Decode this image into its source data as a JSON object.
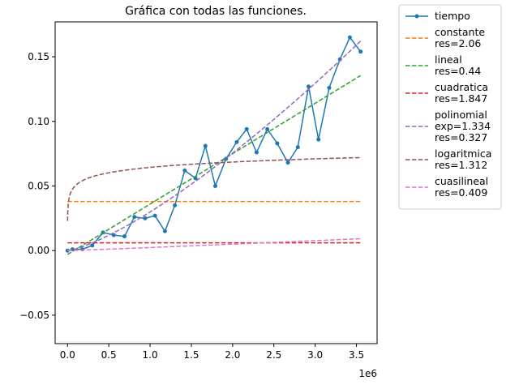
{
  "chart_data": {
    "type": "line",
    "title": "Gráfica con todas las funciones.",
    "xlabel": "",
    "ylabel": "",
    "x_offset_label": "1e6",
    "xlim": [
      -150000,
      3750000
    ],
    "ylim": [
      -0.072,
      0.177
    ],
    "x_ticks": [
      {
        "value": 0,
        "label": "0.0"
      },
      {
        "value": 500000,
        "label": "0.5"
      },
      {
        "value": 1000000,
        "label": "1.0"
      },
      {
        "value": 1500000,
        "label": "1.5"
      },
      {
        "value": 2000000,
        "label": "2.0"
      },
      {
        "value": 2500000,
        "label": "2.5"
      },
      {
        "value": 3000000,
        "label": "3.0"
      },
      {
        "value": 3500000,
        "label": "3.5"
      }
    ],
    "y_ticks": [
      {
        "value": -0.05,
        "label": "−0.05"
      },
      {
        "value": 0,
        "label": "0.00"
      },
      {
        "value": 0.05,
        "label": "0.05"
      },
      {
        "value": 0.1,
        "label": "0.10"
      },
      {
        "value": 0.15,
        "label": "0.15"
      }
    ],
    "grid": false,
    "legend_position": "outside-right",
    "series": [
      {
        "name": "tiempo",
        "legend_lines": [
          "tiempo"
        ],
        "color": "#1f77b4",
        "style": "solid-markers",
        "points": [
          [
            0,
            0.0
          ],
          [
            60000,
            0.001
          ],
          [
            180000,
            0.001
          ],
          [
            300000,
            0.004
          ],
          [
            430000,
            0.014
          ],
          [
            560000,
            0.012
          ],
          [
            690000,
            0.011
          ],
          [
            810000,
            0.026
          ],
          [
            940000,
            0.025
          ],
          [
            1060000,
            0.027
          ],
          [
            1180000,
            0.015
          ],
          [
            1300000,
            0.035
          ],
          [
            1420000,
            0.062
          ],
          [
            1550000,
            0.056
          ],
          [
            1670000,
            0.081
          ],
          [
            1790000,
            0.05
          ],
          [
            1920000,
            0.071
          ],
          [
            2050000,
            0.084
          ],
          [
            2170000,
            0.094
          ],
          [
            2290000,
            0.076
          ],
          [
            2420000,
            0.094
          ],
          [
            2540000,
            0.083
          ],
          [
            2670000,
            0.068
          ],
          [
            2790000,
            0.08
          ],
          [
            2920000,
            0.127
          ],
          [
            3040000,
            0.086
          ],
          [
            3170000,
            0.126
          ],
          [
            3300000,
            0.148
          ],
          [
            3420000,
            0.165
          ],
          [
            3550000,
            0.154
          ]
        ]
      },
      {
        "name": "constante",
        "legend_lines": [
          "constante",
          "res=2.06"
        ],
        "color": "#ff7f0e",
        "style": "dashed",
        "function": "constant",
        "params": {
          "c": 0.038
        }
      },
      {
        "name": "lineal",
        "legend_lines": [
          "lineal",
          "res=0.44"
        ],
        "color": "#2ca02c",
        "style": "dashed",
        "function": "linear",
        "params": {
          "a": 3.9e-08,
          "b": -0.003
        }
      },
      {
        "name": "cuadratica",
        "legend_lines": [
          "cuadratica",
          "res=1.847"
        ],
        "color": "#d62728",
        "style": "dashed",
        "function": "constant",
        "params": {
          "c": 0.006
        }
      },
      {
        "name": "polinomial",
        "legend_lines": [
          "polinomial",
          "exp=1.334",
          "res=0.327"
        ],
        "color": "#9467bd",
        "style": "dashed",
        "function": "power",
        "params": {
          "a": 2.964e-10,
          "exp": 1.334
        }
      },
      {
        "name": "logaritmica",
        "legend_lines": [
          "logaritmica",
          "res=1.312"
        ],
        "color": "#8c564b",
        "style": "dashed",
        "function": "log",
        "params": {
          "a": 0.006,
          "b": -0.0185
        },
        "x_min": 1000
      },
      {
        "name": "cuasilineal",
        "legend_lines": [
          "cuasilineal",
          "res=0.409"
        ],
        "color": "#e377c2",
        "style": "dashed",
        "function": "nlogn",
        "params": {
          "a": 2.58e-09
        }
      }
    ]
  }
}
